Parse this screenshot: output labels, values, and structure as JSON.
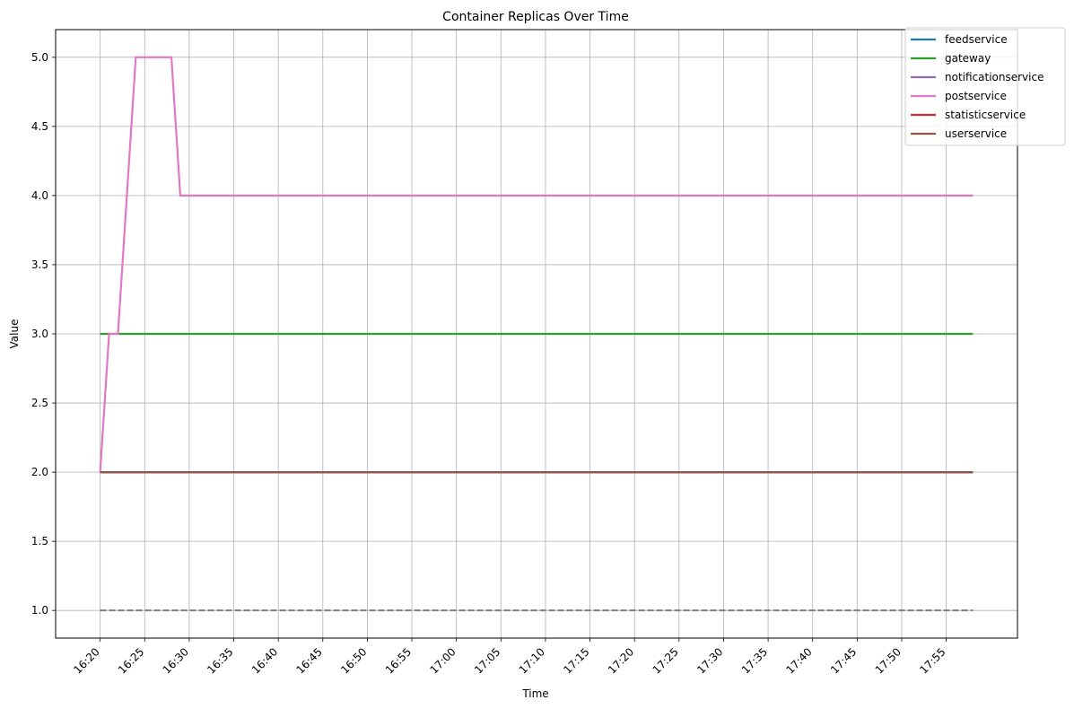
{
  "chart_data": {
    "type": "line",
    "title": "Container Replicas Over Time",
    "xlabel": "Time",
    "ylabel": "Value",
    "xlim": [
      "16:15",
      "18:03"
    ],
    "ylim": [
      0.8,
      5.2
    ],
    "grid": true,
    "legend_position": "top-right",
    "x_ticks": [
      "16:20",
      "16:25",
      "16:30",
      "16:35",
      "16:40",
      "16:45",
      "16:50",
      "16:55",
      "17:00",
      "17:05",
      "17:10",
      "17:15",
      "17:20",
      "17:25",
      "17:30",
      "17:35",
      "17:40",
      "17:45",
      "17:50",
      "17:55"
    ],
    "y_ticks": [
      "1.0",
      "1.5",
      "2.0",
      "2.5",
      "3.0",
      "3.5",
      "4.0",
      "4.5",
      "5.0"
    ],
    "x_tick_rotation": 45,
    "reference_line": {
      "value": 1.0,
      "color": "#7f7f7f",
      "style": "dashed",
      "x": [
        "16:20",
        "17:58"
      ]
    },
    "series": [
      {
        "name": "feedservice",
        "color": "#1f77b4",
        "points": [
          [
            "16:20",
            2
          ],
          [
            "17:58",
            2
          ]
        ]
      },
      {
        "name": "gateway",
        "color": "#2ca02c",
        "points": [
          [
            "16:20",
            3
          ],
          [
            "17:58",
            3
          ]
        ]
      },
      {
        "name": "notificationservice",
        "color": "#9467bd",
        "points": [
          [
            "16:20",
            2
          ],
          [
            "17:58",
            2
          ]
        ]
      },
      {
        "name": "postservice",
        "color": "#e377c2",
        "points": [
          [
            "16:20",
            2
          ],
          [
            "16:21",
            3
          ],
          [
            "16:22",
            3
          ],
          [
            "16:24",
            5
          ],
          [
            "16:28",
            5
          ],
          [
            "16:29",
            4
          ],
          [
            "17:58",
            4
          ]
        ]
      },
      {
        "name": "statisticservice",
        "color": "#d62728",
        "points": [
          [
            "16:20",
            2
          ],
          [
            "17:58",
            2
          ]
        ]
      },
      {
        "name": "userservice",
        "color": "#8c564b",
        "points": [
          [
            "16:20",
            2
          ],
          [
            "17:58",
            2
          ]
        ]
      }
    ]
  }
}
